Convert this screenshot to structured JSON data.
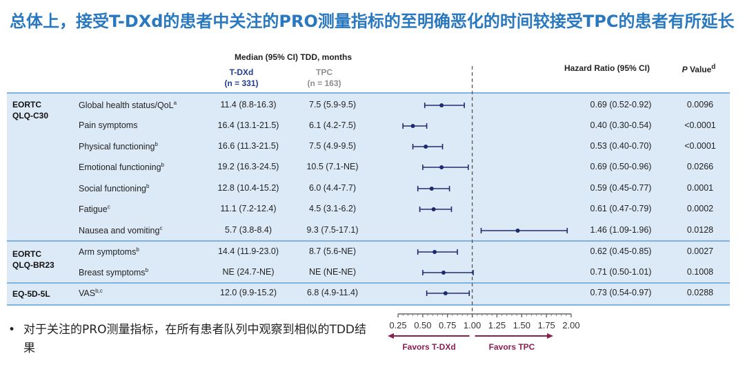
{
  "title": "总体上，接受T-DXd的患者中关注的PRO测量指标的至明确恶化的时间较接受TPC的患者有所延长",
  "headers": {
    "median_tdd": "Median (95% CI) TDD, months",
    "txdd_arm": "T-DXd",
    "txdd_n": "(n = 331)",
    "tpc_arm": "TPC",
    "tpc_n": "(n = 163)",
    "hazard_ratio": "Hazard Ratio (95% CI)",
    "p_value_italic": "P",
    "p_value_rest": " Value",
    "p_value_sup": "d"
  },
  "sections": [
    {
      "label_line1": "EORTC",
      "label_line2": "QLQ-C30"
    },
    {
      "label_line1": "EORTC",
      "label_line2": "QLQ-BR23"
    },
    {
      "label_line1": "EQ-5D-5L",
      "label_line2": ""
    }
  ],
  "bullet": {
    "symbol": "•",
    "text": "对于关注的PRO测量指标，在所有患者队列中观察到相似的TDD结果"
  },
  "chart_data": {
    "type": "forest",
    "x_axis": {
      "min": 0.25,
      "max": 2.0,
      "ticks": [
        0.25,
        0.5,
        0.75,
        1.0,
        1.25,
        1.5,
        1.75,
        2.0
      ],
      "tick_labels": [
        "0.25",
        "0.50",
        "0.75",
        "1.00",
        "1.25",
        "1.50",
        "1.75",
        "2.00"
      ],
      "reference_line": 1.0
    },
    "favors_left": "Favors T-DXd",
    "favors_right": "Favors TPC",
    "colors": {
      "marker": "#1f2a6e",
      "favors": "#8b1e4e",
      "band": "#dce9f6",
      "separator": "#7fb2de",
      "title": "#2a78bf"
    },
    "rows": [
      {
        "section": 0,
        "outcome": "Global health status/QoL",
        "sup": "a",
        "txdd_median": "11.4 (8.8-16.3)",
        "tpc_median": "7.5 (5.9-9.5)",
        "hr": 0.69,
        "lower": 0.52,
        "upper": 0.92,
        "hr_text": "0.69 (0.52-0.92)",
        "p": "0.0096"
      },
      {
        "section": 0,
        "outcome": "Pain symptoms",
        "sup": "",
        "txdd_median": "16.4 (13.1-21.5)",
        "tpc_median": "6.1 (4.2-7.5)",
        "hr": 0.4,
        "lower": 0.3,
        "upper": 0.54,
        "hr_text": "0.40 (0.30-0.54)",
        "p": "<0.0001"
      },
      {
        "section": 0,
        "outcome": "Physical functioning",
        "sup": "b",
        "txdd_median": "16.6 (11.3-21.5)",
        "tpc_median": "7.5 (4.9-9.5)",
        "hr": 0.53,
        "lower": 0.4,
        "upper": 0.7,
        "hr_text": "0.53 (0.40-0.70)",
        "p": "<0.0001"
      },
      {
        "section": 0,
        "outcome": "Emotional functioning",
        "sup": "b",
        "txdd_median": "19.2 (16.3-24.5)",
        "tpc_median": "10.5 (7.1-NE)",
        "hr": 0.69,
        "lower": 0.5,
        "upper": 0.96,
        "hr_text": "0.69 (0.50-0.96)",
        "p": "0.0266"
      },
      {
        "section": 0,
        "outcome": "Social functioning",
        "sup": "b",
        "txdd_median": "12.8 (10.4-15.2)",
        "tpc_median": "6.0 (4.4-7.7)",
        "hr": 0.59,
        "lower": 0.45,
        "upper": 0.77,
        "hr_text": "0.59 (0.45-0.77)",
        "p": "0.0001"
      },
      {
        "section": 0,
        "outcome": "Fatigue",
        "sup": "c",
        "txdd_median": "11.1 (7.2-12.4)",
        "tpc_median": "4.5 (3.1-6.2)",
        "hr": 0.61,
        "lower": 0.47,
        "upper": 0.79,
        "hr_text": "0.61 (0.47-0.79)",
        "p": "0.0002"
      },
      {
        "section": 0,
        "outcome": "Nausea and vomiting",
        "sup": "c",
        "txdd_median": "5.7 (3.8-8.4)",
        "tpc_median": "9.3 (7.5-17.1)",
        "hr": 1.46,
        "lower": 1.09,
        "upper": 1.96,
        "hr_text": "1.46 (1.09-1.96)",
        "p": "0.0128"
      },
      {
        "section": 1,
        "outcome": "Arm symptoms",
        "sup": "b",
        "txdd_median": "14.4 (11.9-23.0)",
        "tpc_median": "8.7 (5.6-NE)",
        "hr": 0.62,
        "lower": 0.45,
        "upper": 0.85,
        "hr_text": "0.62 (0.45-0.85)",
        "p": "0.0027"
      },
      {
        "section": 1,
        "outcome": "Breast symptoms",
        "sup": "b",
        "txdd_median": "NE (24.7-NE)",
        "tpc_median": "NE (NE-NE)",
        "hr": 0.71,
        "lower": 0.5,
        "upper": 1.01,
        "hr_text": "0.71 (0.50-1.01)",
        "p": "0.1008"
      },
      {
        "section": 2,
        "outcome": "VAS",
        "sup": "b,c",
        "txdd_median": "12.0 (9.9-15.2)",
        "tpc_median": "6.8 (4.9-11.4)",
        "hr": 0.73,
        "lower": 0.54,
        "upper": 0.97,
        "hr_text": "0.73 (0.54-0.97)",
        "p": "0.0288"
      }
    ]
  }
}
